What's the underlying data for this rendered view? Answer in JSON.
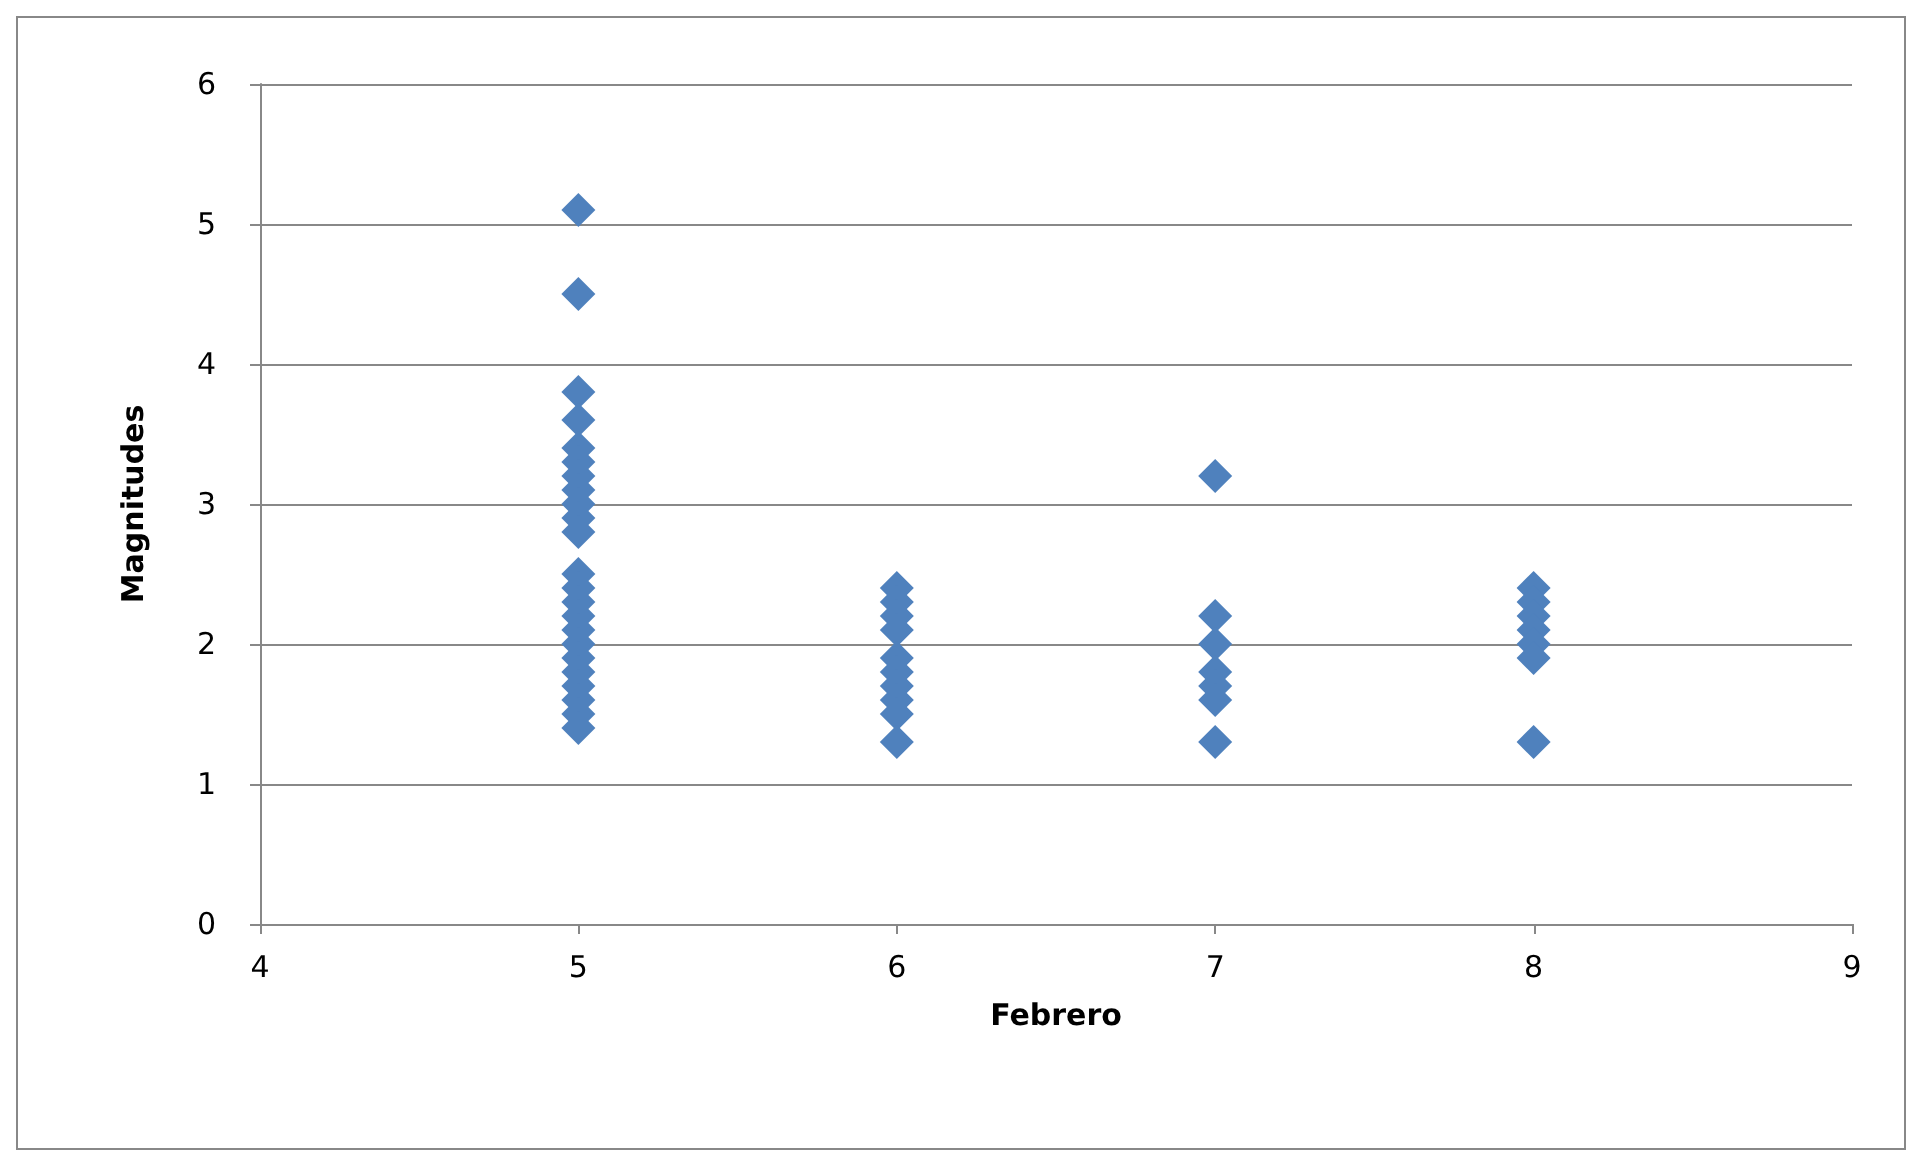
{
  "chart_data": {
    "type": "scatter",
    "xlabel": "Febrero",
    "ylabel": "Magnitudes",
    "marker": "diamond",
    "grid": "y",
    "series": [
      {
        "color": "#4f81bd",
        "x": [
          5,
          5,
          5,
          5,
          5,
          5,
          5,
          5,
          5,
          5,
          5,
          5,
          5,
          5,
          5,
          5,
          5,
          5,
          5,
          5,
          5,
          5,
          5,
          6,
          6,
          6,
          6,
          6,
          6,
          6,
          6,
          6,
          6,
          7,
          7,
          7,
          7,
          7,
          7,
          7,
          8,
          8,
          8,
          8,
          8,
          8,
          8
        ],
        "values": [
          5.1,
          4.5,
          3.8,
          3.6,
          3.4,
          3.3,
          3.2,
          3.1,
          3.0,
          2.9,
          2.8,
          2.5,
          2.4,
          2.3,
          2.2,
          2.1,
          2.0,
          1.9,
          1.8,
          1.7,
          1.6,
          1.5,
          1.4,
          2.4,
          2.3,
          2.2,
          2.1,
          1.9,
          1.8,
          1.7,
          1.6,
          1.5,
          1.3,
          3.2,
          2.2,
          2.0,
          1.8,
          1.7,
          1.6,
          1.3,
          2.4,
          2.3,
          2.2,
          2.1,
          2.0,
          1.9,
          1.3
        ]
      }
    ],
    "xlim": [
      4,
      9
    ],
    "xticks": [
      4,
      5,
      6,
      7,
      8,
      9
    ],
    "ylim": [
      0,
      6
    ],
    "yticks": [
      0,
      1,
      2,
      3,
      4,
      5,
      6
    ]
  }
}
